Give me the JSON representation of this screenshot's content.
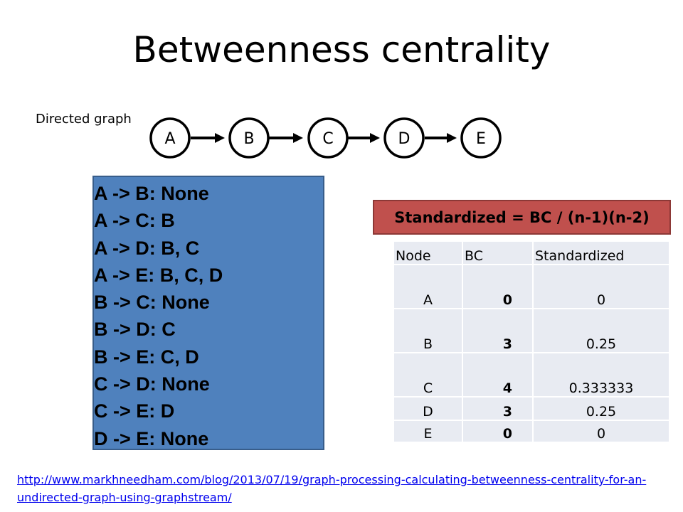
{
  "slide": {
    "title": "Betweenness centrality",
    "graph_label": "Directed graph",
    "nodes": [
      "A",
      "B",
      "C",
      "D",
      "E"
    ],
    "shortest_paths": [
      "A -> B: None",
      "A -> C: B",
      "A -> D: B, C",
      "A -> E: B, C, D",
      "B -> C: None",
      "B -> D: C",
      "B -> E: C, D",
      "C -> D: None",
      "C -> E: D",
      "D -> E: None"
    ],
    "formula": "Standardized = BC / (n-1)(n-2)",
    "table": {
      "headers": [
        "Node",
        "BC",
        "Standardized"
      ],
      "rows": [
        {
          "node": "A",
          "bc": "0",
          "std": "0"
        },
        {
          "node": "B",
          "bc": "3",
          "std": "0.25"
        },
        {
          "node": "C",
          "bc": "4",
          "std": "0.333333"
        },
        {
          "node": "D",
          "bc": "3",
          "std": "0.25"
        },
        {
          "node": "E",
          "bc": "0",
          "std": "0"
        }
      ]
    },
    "source_link": "http://www.markhneedham.com/blog/2013/07/19/graph-processing-calculating-betweenness-centrality-for-an-undirected-graph-using-graphstream/"
  }
}
